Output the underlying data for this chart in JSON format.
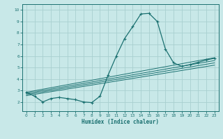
{
  "title": "",
  "xlabel": "Humidex (Indice chaleur)",
  "ylabel": "",
  "xlim": [
    -0.5,
    23.5
  ],
  "ylim": [
    1.2,
    10.5
  ],
  "xticks": [
    0,
    1,
    2,
    3,
    4,
    5,
    6,
    7,
    8,
    9,
    10,
    11,
    12,
    13,
    14,
    15,
    16,
    17,
    18,
    19,
    20,
    21,
    22,
    23
  ],
  "yticks": [
    2,
    3,
    4,
    5,
    6,
    7,
    8,
    9,
    10
  ],
  "bg_color": "#c8e8e8",
  "grid_color": "#a8d0d0",
  "line_color": "#1a7070",
  "curve": {
    "x": [
      0,
      1,
      2,
      3,
      4,
      5,
      6,
      7,
      8,
      9,
      10,
      11,
      12,
      13,
      14,
      15,
      16,
      17,
      18,
      19,
      20,
      21,
      22,
      23
    ],
    "y": [
      2.85,
      2.5,
      2.0,
      2.3,
      2.4,
      2.3,
      2.2,
      2.0,
      1.95,
      2.5,
      4.35,
      6.0,
      7.5,
      8.55,
      9.65,
      9.7,
      9.0,
      6.6,
      5.4,
      5.1,
      5.25,
      5.45,
      5.65,
      5.8
    ]
  },
  "straight_lines": [
    {
      "x": [
        0,
        23
      ],
      "y": [
        2.85,
        5.85
      ]
    },
    {
      "x": [
        0,
        23
      ],
      "y": [
        2.75,
        5.6
      ]
    },
    {
      "x": [
        0,
        23
      ],
      "y": [
        2.65,
        5.4
      ]
    },
    {
      "x": [
        0,
        23
      ],
      "y": [
        2.55,
        5.2
      ]
    }
  ]
}
